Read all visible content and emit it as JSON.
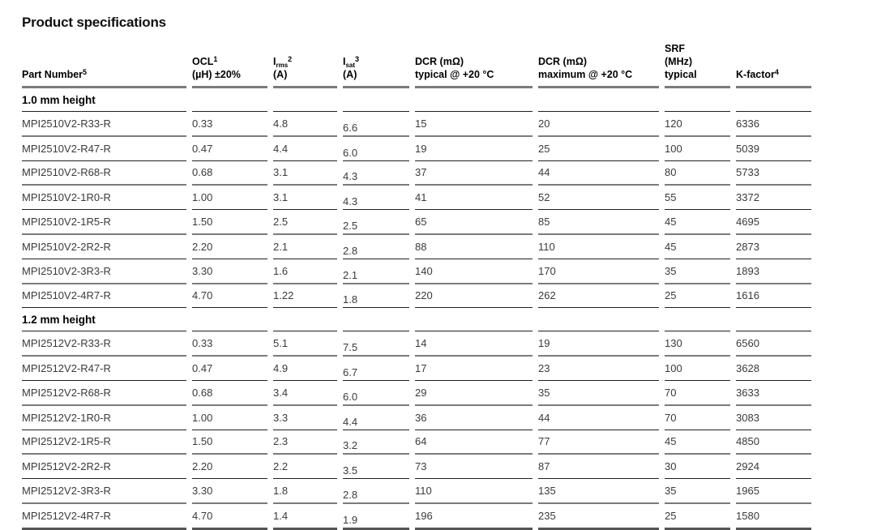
{
  "page": {
    "title": "Product specifications"
  },
  "table": {
    "header": {
      "part": {
        "label": "Part Number",
        "sup": "5"
      },
      "ocl": {
        "l1": "OCL",
        "sup": "1",
        "l2": "(µH) ±20%"
      },
      "irms": {
        "sym": "I",
        "sub": "rms",
        "sup": "2",
        "l2": "(A)"
      },
      "isat": {
        "sym": "I",
        "sub": "sat",
        "sup": "3",
        "l2": "(A)"
      },
      "dcr_typ": {
        "l1": "DCR (mΩ)",
        "l2": "typical @ +20 °C"
      },
      "dcr_max": {
        "l1": "DCR (mΩ)",
        "l2": "maximum @ +20 °C"
      },
      "srf": {
        "l1": "SRF",
        "l2": "(MHz)",
        "l3": "typical"
      },
      "kfactor": {
        "label": "K-factor",
        "sup": "4"
      }
    },
    "sections": [
      {
        "label": "1.0 mm height",
        "rows": [
          {
            "part": "MPI2510V2-R33-R",
            "ocl": "0.33",
            "irms": "4.8",
            "isat": "6.6",
            "dcr_typ": "15",
            "dcr_max": "20",
            "srf": "120",
            "kfactor": "6336"
          },
          {
            "part": "MPI2510V2-R47-R",
            "ocl": "0.47",
            "irms": "4.4",
            "isat": "6.0",
            "dcr_typ": "19",
            "dcr_max": "25",
            "srf": "100",
            "kfactor": "5039"
          },
          {
            "part": "MPI2510V2-R68-R",
            "ocl": "0.68",
            "irms": "3.1",
            "isat": "4.3",
            "dcr_typ": "37",
            "dcr_max": "44",
            "srf": "80",
            "kfactor": "5733"
          },
          {
            "part": "MPI2510V2-1R0-R",
            "ocl": "1.00",
            "irms": "3.1",
            "isat": "4.3",
            "dcr_typ": "41",
            "dcr_max": "52",
            "srf": "55",
            "kfactor": "3372"
          },
          {
            "part": "MPI2510V2-1R5-R",
            "ocl": "1.50",
            "irms": "2.5",
            "isat": "2.5",
            "dcr_typ": "65",
            "dcr_max": "85",
            "srf": "45",
            "kfactor": "4695"
          },
          {
            "part": "MPI2510V2-2R2-R",
            "ocl": "2.20",
            "irms": "2.1",
            "isat": "2.8",
            "dcr_typ": "88",
            "dcr_max": "110",
            "srf": "45",
            "kfactor": "2873"
          },
          {
            "part": "MPI2510V2-3R3-R",
            "ocl": "3.30",
            "irms": "1.6",
            "isat": "2.1",
            "dcr_typ": "140",
            "dcr_max": "170",
            "srf": "35",
            "kfactor": "1893"
          },
          {
            "part": "MPI2510V2-4R7-R",
            "ocl": "4.70",
            "irms": "1.22",
            "isat": "1.8",
            "dcr_typ": "220",
            "dcr_max": "262",
            "srf": "25",
            "kfactor": "1616"
          }
        ]
      },
      {
        "label": "1.2 mm height",
        "rows": [
          {
            "part": "MPI2512V2-R33-R",
            "ocl": "0.33",
            "irms": "5.1",
            "isat": "7.5",
            "dcr_typ": "14",
            "dcr_max": "19",
            "srf": "130",
            "kfactor": "6560"
          },
          {
            "part": "MPI2512V2-R47-R",
            "ocl": "0.47",
            "irms": "4.9",
            "isat": "6.7",
            "dcr_typ": "17",
            "dcr_max": "23",
            "srf": "100",
            "kfactor": "3628"
          },
          {
            "part": "MPI2512V2-R68-R",
            "ocl": "0.68",
            "irms": "3.4",
            "isat": "6.0",
            "dcr_typ": "29",
            "dcr_max": "35",
            "srf": "70",
            "kfactor": "3633"
          },
          {
            "part": "MPI2512V2-1R0-R",
            "ocl": "1.00",
            "irms": "3.3",
            "isat": "4.4",
            "dcr_typ": "36",
            "dcr_max": "44",
            "srf": "70",
            "kfactor": "3083"
          },
          {
            "part": "MPI2512V2-1R5-R",
            "ocl": "1.50",
            "irms": "2.3",
            "isat": "3.2",
            "dcr_typ": "64",
            "dcr_max": "77",
            "srf": "45",
            "kfactor": "4850"
          },
          {
            "part": "MPI2512V2-2R2-R",
            "ocl": "2.20",
            "irms": "2.2",
            "isat": "3.5",
            "dcr_typ": "73",
            "dcr_max": "87",
            "srf": "30",
            "kfactor": "2924"
          },
          {
            "part": "MPI2512V2-3R3-R",
            "ocl": "3.30",
            "irms": "1.8",
            "isat": "2.8",
            "dcr_typ": "110",
            "dcr_max": "135",
            "srf": "35",
            "kfactor": "1965"
          },
          {
            "part": "MPI2512V2-4R7-R",
            "ocl": "4.70",
            "irms": "1.4",
            "isat": "1.9",
            "dcr_typ": "196",
            "dcr_max": "235",
            "srf": "25",
            "kfactor": "1580"
          }
        ]
      }
    ]
  }
}
